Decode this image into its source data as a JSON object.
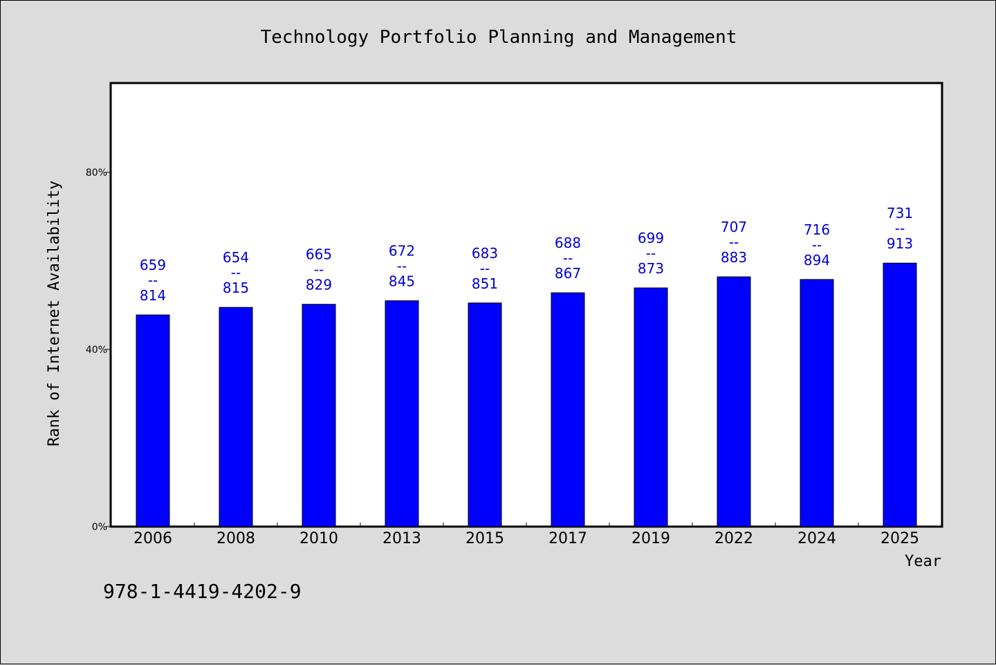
{
  "chart_data": {
    "type": "bar",
    "title": "Technology Portfolio Planning and Management",
    "xlabel": "Year",
    "ylabel": "Rank of Internet Availability",
    "ylim": [
      0,
      100
    ],
    "yticks": [
      {
        "value": 0,
        "label": "0%"
      },
      {
        "value": 40,
        "label": "40%"
      },
      {
        "value": 80,
        "label": "80%"
      }
    ],
    "categories": [
      "2006",
      "2008",
      "2010",
      "2013",
      "2015",
      "2017",
      "2019",
      "2022",
      "2024",
      "2025"
    ],
    "values": [
      47.8,
      49.5,
      50.2,
      51.0,
      50.5,
      52.8,
      53.9,
      56.4,
      55.8,
      59.5
    ],
    "labels_top": [
      "659",
      "654",
      "665",
      "672",
      "683",
      "688",
      "699",
      "707",
      "716",
      "731"
    ],
    "labels_sep": "--",
    "labels_bottom": [
      "814",
      "815",
      "829",
      "845",
      "851",
      "867",
      "873",
      "883",
      "894",
      "913"
    ],
    "bar_color": "#0000ff",
    "label_color": "#0000cc",
    "grid": false,
    "legend": "none"
  },
  "footer": {
    "isbn": "978-1-4419-4202-9"
  }
}
